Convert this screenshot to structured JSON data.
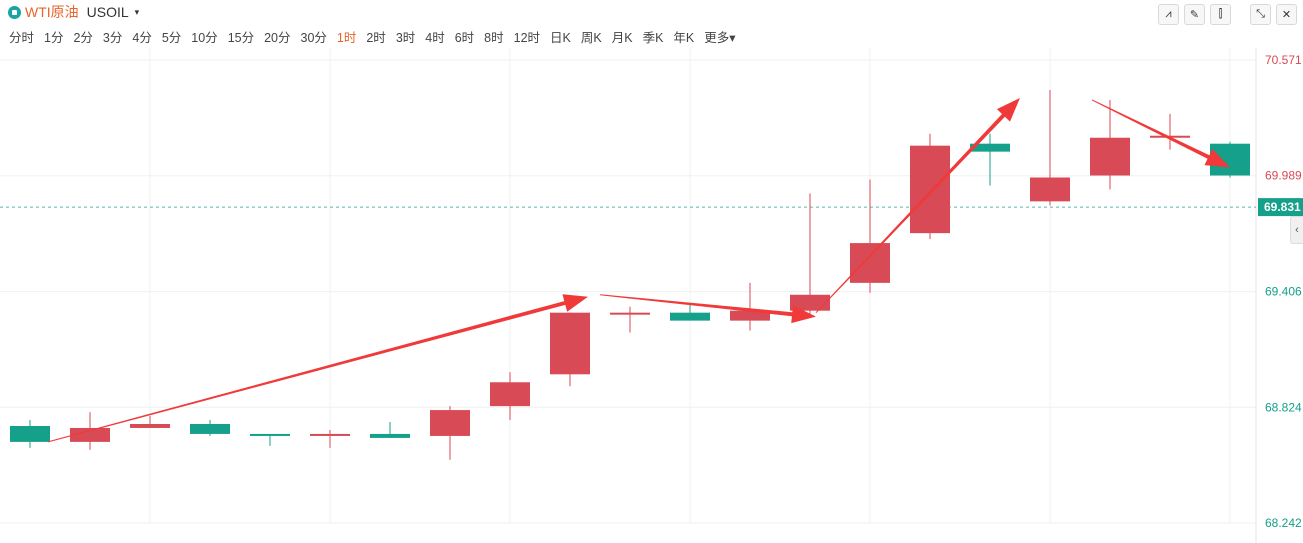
{
  "header": {
    "symbol_name": "WTI原油",
    "symbol_code": "USOIL",
    "dropdown_caret": "▾"
  },
  "periods": [
    "分时",
    "1分",
    "2分",
    "3分",
    "4分",
    "5分",
    "10分",
    "15分",
    "20分",
    "30分",
    "1时",
    "2时",
    "3时",
    "4时",
    "6时",
    "8时",
    "12时",
    "日K",
    "周K",
    "月K",
    "季K",
    "年K",
    "更多▾"
  ],
  "active_period": "1时",
  "tools": [
    {
      "name": "line-chart-icon",
      "glyph": "⩘"
    },
    {
      "name": "draw-pencil-icon",
      "glyph": "✎"
    },
    {
      "name": "candlestick-icon",
      "glyph": "⫿"
    },
    {
      "name": "collapse-icon",
      "glyph": "⤡"
    },
    {
      "name": "close-icon",
      "glyph": "✕"
    }
  ],
  "colors": {
    "up": "#d84a55",
    "down": "#14a08a",
    "arrow": "#f03a3a",
    "grid": "#f0f0f0",
    "current_line": "#5ab6b0",
    "label_red": "#d84a55",
    "label_green": "#14a08a"
  },
  "chart_data": {
    "type": "candlestick",
    "y_ticks": [
      {
        "value": 70.571,
        "label": "70.571",
        "color": "red"
      },
      {
        "value": 69.989,
        "label": "69.989",
        "color": "red"
      },
      {
        "value": 69.406,
        "label": "69.406",
        "color": "green"
      },
      {
        "value": 68.824,
        "label": "68.824",
        "color": "green"
      },
      {
        "value": 68.242,
        "label": "68.242",
        "color": "green"
      }
    ],
    "current_price": {
      "value": 69.831,
      "label": "69.831"
    },
    "ylim": [
      68.242,
      70.571
    ],
    "candles": [
      {
        "o": 68.73,
        "c": 68.65,
        "h": 68.76,
        "l": 68.62
      },
      {
        "o": 68.65,
        "c": 68.72,
        "h": 68.8,
        "l": 68.61
      },
      {
        "o": 68.72,
        "c": 68.74,
        "h": 68.78,
        "l": 68.72
      },
      {
        "o": 68.74,
        "c": 68.69,
        "h": 68.76,
        "l": 68.68
      },
      {
        "o": 68.69,
        "c": 68.68,
        "h": 68.69,
        "l": 68.63
      },
      {
        "o": 68.68,
        "c": 68.69,
        "h": 68.71,
        "l": 68.62
      },
      {
        "o": 68.69,
        "c": 68.67,
        "h": 68.75,
        "l": 68.67
      },
      {
        "o": 68.68,
        "c": 68.81,
        "h": 68.83,
        "l": 68.56
      },
      {
        "o": 68.83,
        "c": 68.95,
        "h": 69.0,
        "l": 68.76
      },
      {
        "o": 68.99,
        "c": 69.3,
        "h": 69.3,
        "l": 68.93
      },
      {
        "o": 69.3,
        "c": 69.3,
        "h": 69.33,
        "l": 69.2
      },
      {
        "o": 69.3,
        "c": 69.26,
        "h": 69.34,
        "l": 69.26
      },
      {
        "o": 69.26,
        "c": 69.31,
        "h": 69.45,
        "l": 69.21
      },
      {
        "o": 69.31,
        "c": 69.39,
        "h": 69.9,
        "l": 69.28
      },
      {
        "o": 69.45,
        "c": 69.65,
        "h": 69.97,
        "l": 69.4
      },
      {
        "o": 69.7,
        "c": 70.14,
        "h": 70.2,
        "l": 69.67
      },
      {
        "o": 70.15,
        "c": 70.11,
        "h": 70.2,
        "l": 69.94
      },
      {
        "o": 69.86,
        "c": 69.98,
        "h": 70.42,
        "l": 69.84
      },
      {
        "o": 69.99,
        "c": 70.18,
        "h": 70.37,
        "l": 69.92
      },
      {
        "o": 70.18,
        "c": 70.19,
        "h": 70.3,
        "l": 70.12
      },
      {
        "o": 70.15,
        "c": 69.99,
        "h": 70.16,
        "l": 69.98
      }
    ],
    "arrows": [
      {
        "from": [
          0.3,
          68.65
        ],
        "to": [
          9.3,
          69.38
        ]
      },
      {
        "from": [
          9.5,
          69.39
        ],
        "to": [
          13.1,
          69.28
        ]
      },
      {
        "from": [
          13.1,
          69.3
        ],
        "to": [
          16.5,
          70.38
        ]
      },
      {
        "from": [
          17.7,
          70.37
        ],
        "to": [
          20.0,
          70.03
        ]
      }
    ]
  }
}
